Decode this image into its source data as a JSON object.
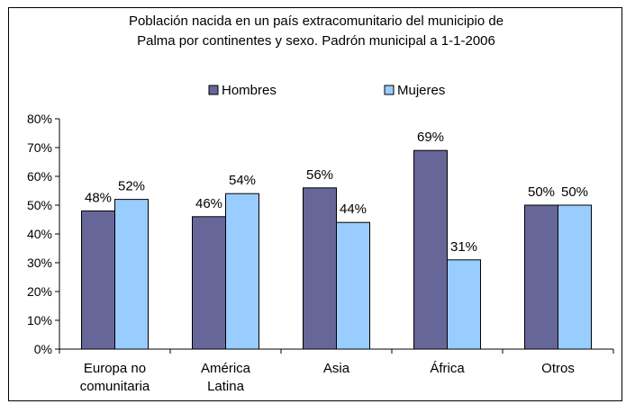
{
  "chart_data": {
    "type": "bar",
    "title_lines": [
      "Población nacida en un país extracomunitario del municipio de",
      "Palma por continentes y sexo. Padrón municipal a 1-1-2006"
    ],
    "categories": [
      [
        "Europa no",
        "comunitaria"
      ],
      [
        "América",
        "Latina"
      ],
      [
        "Asia"
      ],
      [
        "África"
      ],
      [
        "Otros"
      ]
    ],
    "series": [
      {
        "name": "Hombres",
        "color": "#666699",
        "values": [
          48,
          46,
          56,
          69,
          50
        ],
        "labels": [
          "48%",
          "46%",
          "56%",
          "69%",
          "50%"
        ]
      },
      {
        "name": "Mujeres",
        "color": "#99CCFF",
        "values": [
          52,
          54,
          44,
          31,
          50
        ],
        "labels": [
          "52%",
          "54%",
          "44%",
          "31%",
          "50%"
        ]
      }
    ],
    "y_ticks": [
      0,
      10,
      20,
      30,
      40,
      50,
      60,
      70,
      80
    ],
    "y_tick_labels": [
      "0%",
      "10%",
      "20%",
      "30%",
      "40%",
      "50%",
      "60%",
      "70%",
      "80%"
    ],
    "ylim": [
      0,
      80
    ],
    "grid": false,
    "legend_position": "top-center",
    "xlabel": "",
    "ylabel": ""
  }
}
